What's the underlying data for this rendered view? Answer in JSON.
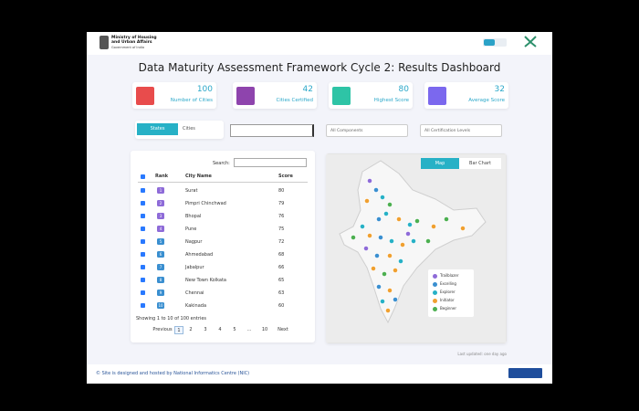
{
  "header": {
    "ministry": "Ministry of Housing and Urban Affairs",
    "government": "Government of India"
  },
  "title": "Data Maturity Assessment Framework Cycle 2: Results Dashboard",
  "stats": [
    {
      "value": 100,
      "label": "Number of Cities"
    },
    {
      "value": 42,
      "label": "Cities Certified"
    },
    {
      "value": 80,
      "label": "Highest Score"
    },
    {
      "value": 32,
      "label": "Average Score"
    }
  ],
  "filters": {
    "tabs": [
      "States",
      "Cities"
    ],
    "components": "All Components",
    "levels": "All Certification Levels"
  },
  "table": {
    "search_label": "Search:",
    "columns": [
      "Rank",
      "City Name",
      "Score"
    ],
    "rows": [
      [
        1,
        "Surat",
        80
      ],
      [
        2,
        "Pimpri Chinchwad",
        79
      ],
      [
        3,
        "Bhopal",
        76
      ],
      [
        4,
        "Pune",
        75
      ],
      [
        5,
        "Nagpur",
        72
      ],
      [
        6,
        "Ahmedabad",
        68
      ],
      [
        7,
        "Jabalpur",
        66
      ],
      [
        8,
        "New Town Kolkata",
        65
      ],
      [
        9,
        "Chennai",
        63
      ],
      [
        10,
        "Kakinada",
        60
      ]
    ],
    "info": "Showing 1 to 10 of 100 entries",
    "pagination": [
      "Previous",
      "1",
      "2",
      "3",
      "4",
      "5",
      "…",
      "10",
      "Next"
    ]
  },
  "map": {
    "tabs": [
      "Map",
      "Bar Chart"
    ],
    "legend": [
      "Trailblazer",
      "Excelling",
      "Explorer",
      "Initiator",
      "Beginner"
    ]
  },
  "last_updated": "Last updated: one day ago",
  "footer": "© Site is designed and hosted by National Informatics Centre (NIC)"
}
